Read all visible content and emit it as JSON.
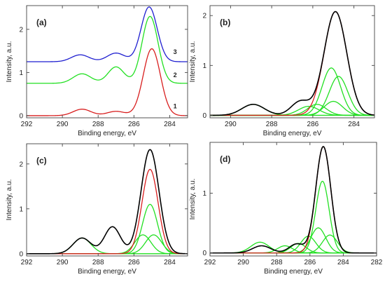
{
  "colors": {
    "blue": "#1f1fd0",
    "green": "#22e022",
    "red": "#d81e1e",
    "black": "#000000",
    "axis": "#444444"
  },
  "chart_data": [
    {
      "type": "line",
      "panel_label": "(a)",
      "xlabel": "Binding energy, eV",
      "ylabel": "Intensity, a.u.",
      "xlim": [
        292,
        283
      ],
      "ylim": [
        -0.05,
        2.55
      ],
      "x_ticks": [
        292,
        290,
        288,
        286,
        284
      ],
      "y_ticks": [
        0,
        1,
        2
      ],
      "curve_labels": [
        {
          "text": "3",
          "x": 283.7,
          "y": 1.48,
          "color": "black"
        },
        {
          "text": "2",
          "x": 283.7,
          "y": 0.94,
          "color": "black"
        },
        {
          "text": "1",
          "x": 283.7,
          "y": 0.22,
          "color": "black"
        }
      ],
      "series": [
        {
          "color": "blue",
          "baseline": 1.25,
          "peaks": [
            {
              "c": 285.15,
              "h": 1.27,
              "w": 0.45
            },
            {
              "c": 287.0,
              "h": 0.2,
              "w": 0.5
            },
            {
              "c": 289.0,
              "h": 0.16,
              "w": 0.5
            }
          ]
        },
        {
          "color": "green",
          "baseline": 0.75,
          "peaks": [
            {
              "c": 285.1,
              "h": 1.55,
              "w": 0.45
            },
            {
              "c": 287.0,
              "h": 0.38,
              "w": 0.45
            },
            {
              "c": 288.9,
              "h": 0.22,
              "w": 0.5
            }
          ]
        },
        {
          "color": "red",
          "baseline": 0.0,
          "peaks": [
            {
              "c": 285.0,
              "h": 1.55,
              "w": 0.48
            },
            {
              "c": 287.0,
              "h": 0.1,
              "w": 0.5
            },
            {
              "c": 288.9,
              "h": 0.15,
              "w": 0.5
            }
          ]
        }
      ]
    },
    {
      "type": "line",
      "panel_label": "(b)",
      "xlabel": "Binding energy, eV",
      "ylabel": "Intensity, a.u.",
      "xlim": [
        291,
        283
      ],
      "ylim": [
        -0.05,
        2.2
      ],
      "x_ticks": [
        290,
        288,
        286,
        284
      ],
      "y_ticks": [
        0,
        1,
        2
      ],
      "series": [
        {
          "color": "green",
          "baseline": 0,
          "peaks": [
            {
              "c": 288.9,
              "h": 0.22,
              "w": 0.55
            }
          ]
        },
        {
          "color": "green",
          "baseline": 0,
          "peaks": [
            {
              "c": 286.2,
              "h": 0.18,
              "w": 0.5
            }
          ]
        },
        {
          "color": "green",
          "baseline": 0,
          "peaks": [
            {
              "c": 285.8,
              "h": 0.22,
              "w": 0.45
            }
          ]
        },
        {
          "color": "green",
          "baseline": 0,
          "peaks": [
            {
              "c": 285.0,
              "h": 0.28,
              "w": 0.45
            }
          ]
        },
        {
          "color": "green",
          "baseline": 0,
          "peaks": [
            {
              "c": 285.1,
              "h": 0.95,
              "w": 0.45
            }
          ]
        },
        {
          "color": "green",
          "baseline": 0,
          "peaks": [
            {
              "c": 284.75,
              "h": 0.78,
              "w": 0.45
            }
          ]
        },
        {
          "color": "red",
          "baseline": 0,
          "peaks": [
            {
              "c": 284.9,
              "h": 2.08,
              "w": 0.55
            }
          ]
        },
        {
          "color": "black",
          "baseline": 0,
          "peaks": [
            {
              "c": 284.9,
              "h": 2.08,
              "w": 0.55
            },
            {
              "c": 286.6,
              "h": 0.28,
              "w": 0.45
            },
            {
              "c": 288.9,
              "h": 0.22,
              "w": 0.55
            }
          ]
        }
      ]
    },
    {
      "type": "line",
      "panel_label": "(c)",
      "xlabel": "Binding energy, eV",
      "ylabel": "Intensity, a.u.",
      "xlim": [
        292,
        283
      ],
      "ylim": [
        -0.05,
        2.45
      ],
      "x_ticks": [
        292,
        290,
        288,
        286,
        284
      ],
      "y_ticks": [
        0,
        1,
        2
      ],
      "series": [
        {
          "color": "green",
          "baseline": 0,
          "peaks": [
            {
              "c": 288.9,
              "h": 0.35,
              "w": 0.5
            }
          ]
        },
        {
          "color": "green",
          "baseline": 0,
          "peaks": [
            {
              "c": 285.5,
              "h": 0.42,
              "w": 0.45
            }
          ]
        },
        {
          "color": "green",
          "baseline": 0,
          "peaks": [
            {
              "c": 284.9,
              "h": 0.42,
              "w": 0.45
            }
          ]
        },
        {
          "color": "green",
          "baseline": 0,
          "peaks": [
            {
              "c": 285.1,
              "h": 1.1,
              "w": 0.42
            }
          ]
        },
        {
          "color": "red",
          "baseline": 0,
          "peaks": [
            {
              "c": 285.1,
              "h": 1.88,
              "w": 0.45
            }
          ]
        },
        {
          "color": "black",
          "baseline": 0,
          "peaks": [
            {
              "c": 285.1,
              "h": 2.32,
              "w": 0.5
            },
            {
              "c": 287.2,
              "h": 0.6,
              "w": 0.45
            },
            {
              "c": 288.9,
              "h": 0.35,
              "w": 0.5
            }
          ]
        }
      ]
    },
    {
      "type": "line",
      "panel_label": "(d)",
      "xlabel": "Binding energy, eV",
      "ylabel": "Intensity, a.u.",
      "xlim": [
        292,
        282
      ],
      "ylim": [
        -0.05,
        1.85
      ],
      "x_ticks": [
        292,
        290,
        288,
        286,
        284,
        282
      ],
      "y_ticks": [
        0,
        1
      ],
      "series": [
        {
          "color": "green",
          "baseline": 0,
          "peaks": [
            {
              "c": 289.0,
              "h": 0.18,
              "w": 0.55
            }
          ]
        },
        {
          "color": "green",
          "baseline": 0,
          "peaks": [
            {
              "c": 287.5,
              "h": 0.12,
              "w": 0.45
            }
          ]
        },
        {
          "color": "green",
          "baseline": 0,
          "peaks": [
            {
              "c": 286.7,
              "h": 0.16,
              "w": 0.45
            }
          ]
        },
        {
          "color": "green",
          "baseline": 0,
          "peaks": [
            {
              "c": 286.1,
              "h": 0.28,
              "w": 0.45
            }
          ]
        },
        {
          "color": "green",
          "baseline": 0,
          "peaks": [
            {
              "c": 285.5,
              "h": 0.42,
              "w": 0.45
            }
          ]
        },
        {
          "color": "green",
          "baseline": 0,
          "peaks": [
            {
              "c": 284.8,
              "h": 0.3,
              "w": 0.45
            }
          ]
        },
        {
          "color": "green",
          "baseline": 0,
          "peaks": [
            {
              "c": 285.25,
              "h": 1.2,
              "w": 0.4
            }
          ]
        },
        {
          "color": "red",
          "baseline": 0,
          "peaks": [
            {
              "c": 285.2,
              "h": 1.78,
              "w": 0.45
            }
          ]
        },
        {
          "color": "black",
          "baseline": 0,
          "peaks": [
            {
              "c": 285.2,
              "h": 1.78,
              "w": 0.45
            },
            {
              "c": 286.8,
              "h": 0.15,
              "w": 0.45
            },
            {
              "c": 288.9,
              "h": 0.12,
              "w": 0.55
            }
          ]
        }
      ]
    }
  ]
}
